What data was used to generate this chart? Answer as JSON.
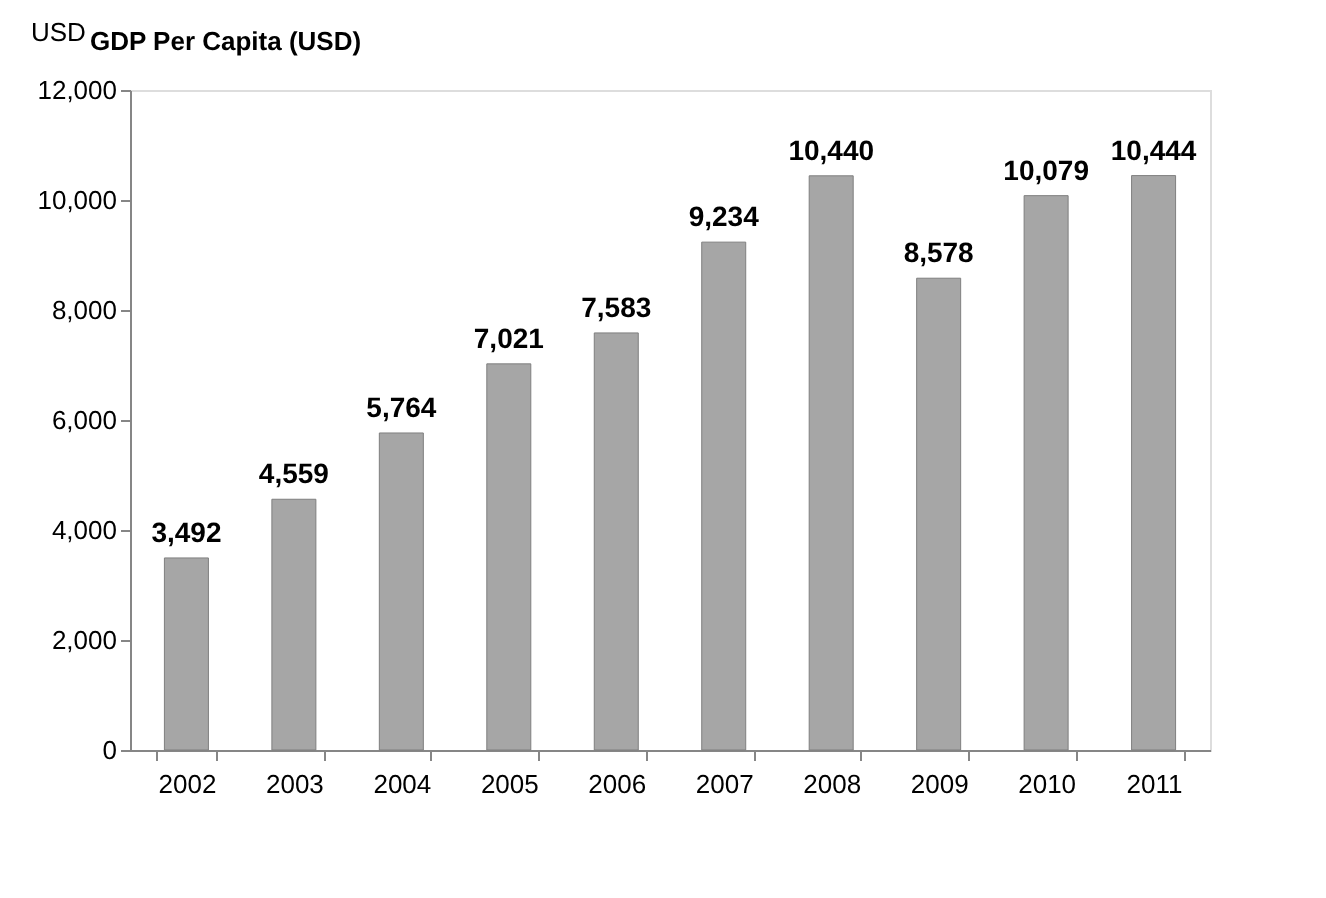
{
  "chart_data": {
    "type": "bar",
    "title": "GDP Per Capita (USD)",
    "ylabel": "USD",
    "categories": [
      "2002",
      "2003",
      "2004",
      "2005",
      "2006",
      "2007",
      "2008",
      "2009",
      "2010",
      "2011"
    ],
    "values": [
      3492,
      4559,
      5764,
      7021,
      7583,
      9234,
      10440,
      8578,
      10079,
      10444
    ],
    "value_labels": [
      "3,492",
      "4,559",
      "5,764",
      "7,021",
      "7,583",
      "9,234",
      "10,440",
      "8,578",
      "10,079",
      "10,444"
    ],
    "color": "#a6a6a6",
    "ylim": [
      0,
      12000
    ],
    "yticks": [
      0,
      {
        "value": 2000,
        "label": "2,000"
      },
      {
        "value": 4000,
        "label": "4,000"
      },
      {
        "value": 6000,
        "label": "6,000"
      },
      {
        "value": 8000,
        "label": "8,000"
      },
      {
        "value": 10000,
        "label": "10,000"
      },
      {
        "value": 12000,
        "label": "12,000"
      }
    ],
    "grid": false
  }
}
